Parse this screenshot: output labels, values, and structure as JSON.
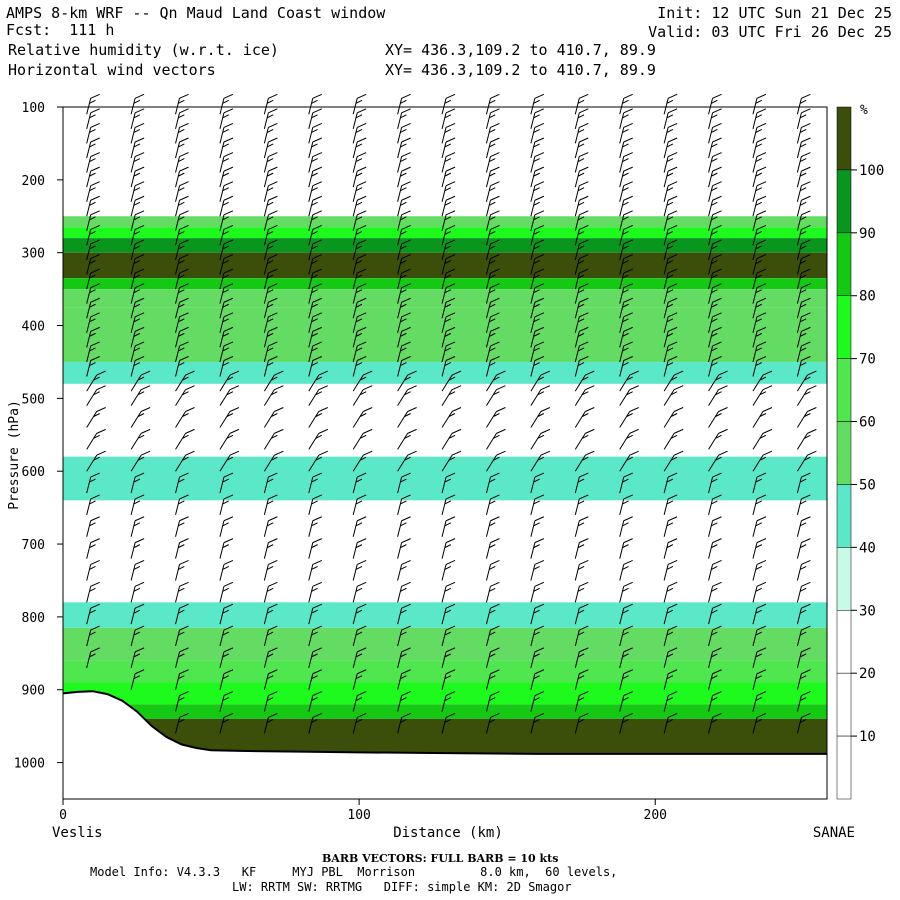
{
  "header": {
    "title_left": "AMPS 8-km WRF -- Qn Maud Land Coast window",
    "forecast": "Fcst:  111 h",
    "field1": "Relative humidity (w.r.t. ice)",
    "field2": "Horizontal wind vectors",
    "xy1": "XY= 436.3,109.2 to 410.7, 89.9",
    "xy2": "XY= 436.3,109.2 to 410.7, 89.9",
    "init": "Init: 12 UTC Sun 21 Dec 25",
    "valid": "Valid: 03 UTC Fri 26 Dec 25"
  },
  "colors": {
    "c0": "#ffffff",
    "c30": "#c8fae8",
    "c40": "#5ae8c8",
    "c50": "#64dc64",
    "c60": "#50e650",
    "c70": "#1efa1e",
    "c80": "#14c814",
    "c90": "#0a961e",
    "c100": "#005a0a",
    "c110": "#3c4f0a",
    "terrain_line": "#000000"
  },
  "chart_data": {
    "type": "heatmap",
    "xlabel": "Distance (km)",
    "ylabel": "Pressure (hPa)",
    "x_range": [
      0,
      258
    ],
    "y_range": [
      100,
      1050
    ],
    "x_ticks": [
      0,
      100,
      200
    ],
    "y_ticks": [
      100,
      200,
      300,
      400,
      500,
      600,
      700,
      800,
      900,
      1000
    ],
    "left_end_label": "Veslis",
    "right_end_label": "SANAE",
    "colorbar": {
      "unit": "%",
      "levels": [
        10,
        20,
        30,
        40,
        50,
        60,
        70,
        80,
        90,
        100
      ],
      "colors": [
        "#ffffff",
        "#ffffff",
        "#ffffff",
        "#c8fae8",
        "#5ae8c8",
        "#64dc64",
        "#50e650",
        "#1efa1e",
        "#14c814",
        "#0a961e",
        "#3c4f0a"
      ]
    },
    "rh_bands": [
      {
        "p_top": 250,
        "p_bottom": 265,
        "rh": 40
      },
      {
        "p_top": 265,
        "p_bottom": 280,
        "rh": 60
      },
      {
        "p_top": 280,
        "p_bottom": 300,
        "rh": 85
      },
      {
        "p_top": 300,
        "p_bottom": 335,
        "rh": 100
      },
      {
        "p_top": 335,
        "p_bottom": 350,
        "rh": 75
      },
      {
        "p_top": 350,
        "p_bottom": 375,
        "rh": 45
      },
      {
        "p_top": 375,
        "p_bottom": 450,
        "rh": 45
      },
      {
        "p_top": 450,
        "p_bottom": 480,
        "rh": 35
      },
      {
        "p_top": 580,
        "p_bottom": 640,
        "rh": 35
      },
      {
        "p_top": 780,
        "p_bottom": 815,
        "rh": 35
      },
      {
        "p_top": 815,
        "p_bottom": 860,
        "rh": 45
      },
      {
        "p_top": 860,
        "p_bottom": 890,
        "rh": 55
      },
      {
        "p_top": 890,
        "p_bottom": 920,
        "rh": 65
      },
      {
        "p_top": 920,
        "p_bottom": 940,
        "rh": 75
      },
      {
        "p_top": 940,
        "p_bottom": 990,
        "rh": 105
      }
    ],
    "terrain": {
      "x": [
        0,
        5,
        10,
        15,
        20,
        25,
        30,
        35,
        40,
        45,
        50,
        60,
        80,
        100,
        130,
        160,
        200,
        258
      ],
      "p": [
        905,
        903,
        902,
        906,
        915,
        930,
        950,
        965,
        975,
        980,
        983,
        984,
        985,
        986,
        987,
        988,
        988,
        988
      ]
    },
    "wind_barb_columns_km": [
      8,
      23,
      38,
      53,
      68,
      83,
      98,
      113,
      128,
      143,
      158,
      173,
      188,
      203,
      218,
      233,
      248
    ],
    "wind_barb_levels_hPa": [
      110,
      130,
      150,
      170,
      190,
      210,
      230,
      250,
      270,
      290,
      310,
      330,
      350,
      370,
      390,
      410,
      430,
      450,
      470,
      490,
      510,
      540,
      570,
      600,
      630,
      660,
      690,
      720,
      750,
      780,
      810,
      840,
      870,
      900,
      930,
      960
    ]
  },
  "footer": {
    "barb_title": "BARB VECTORS:  FULL BARB = 10 kts",
    "model_line1": "Model Info: V4.3.3   KF     MYJ PBL  Morrison         8.0 km,  60 levels,",
    "model_line2": "LW: RRTM SW: RRTMG   DIFF: simple KM: 2D Smagor"
  }
}
